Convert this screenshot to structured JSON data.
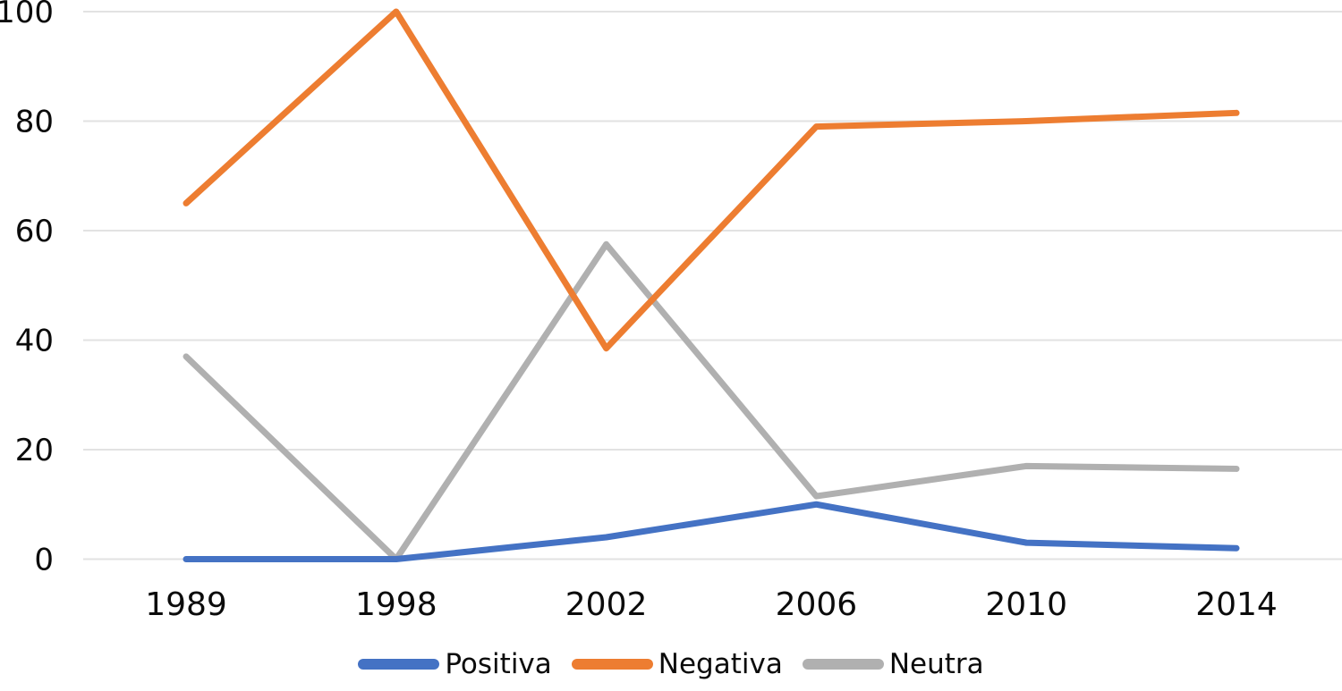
{
  "chart_data": {
    "type": "line",
    "title": "",
    "xlabel": "",
    "ylabel": "",
    "categories": [
      "1989",
      "1998",
      "2002",
      "2006",
      "2010",
      "2014"
    ],
    "series": [
      {
        "name": "Positiva",
        "color": "#4472C4",
        "values": [
          0,
          0,
          4,
          10,
          3,
          2
        ]
      },
      {
        "name": "Negativa",
        "color": "#ED7D31",
        "values": [
          65,
          100,
          38.5,
          79,
          80,
          81.5
        ]
      },
      {
        "name": "Neutra",
        "color": "#B0B0B0",
        "values": [
          37,
          0,
          57.5,
          11.5,
          17,
          16.5
        ]
      }
    ],
    "y_ticks": [
      0,
      20,
      40,
      60,
      80,
      100
    ],
    "ylim": [
      0,
      100
    ],
    "grid": true,
    "legend_position": "bottom",
    "line_width": 7,
    "gridline_color": "#E2E2E2",
    "text_color": "#0B0B0B"
  }
}
